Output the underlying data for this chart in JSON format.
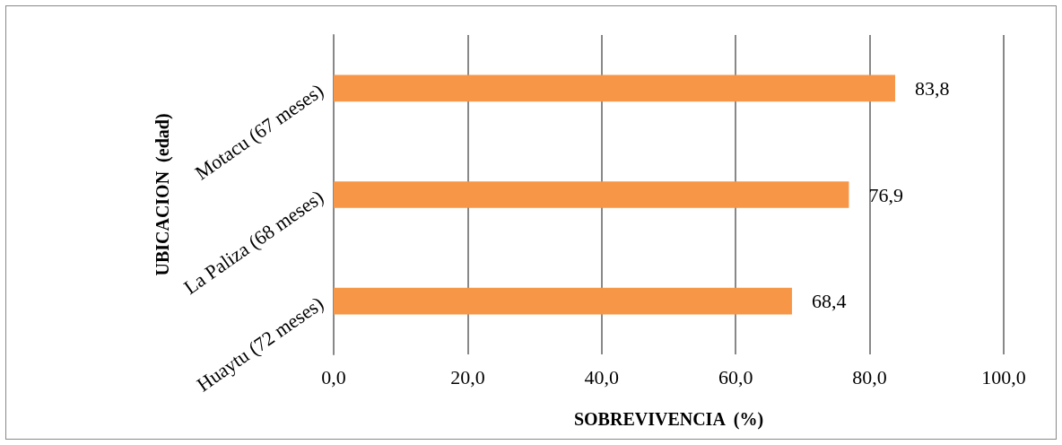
{
  "chart_data": {
    "type": "bar",
    "orientation": "horizontal",
    "xlabel": "SOBREVIVENCIA  (%)",
    "ylabel": "UBICACION  (edad)",
    "categories": [
      "Motacu (67 meses)",
      "La Paliza (68 meses)",
      "Huaytu (72 meses)"
    ],
    "values": [
      83.8,
      76.9,
      68.4
    ],
    "value_labels": [
      "83,8",
      "76,9",
      "68,4"
    ],
    "color": "#f79646",
    "xlim": [
      0,
      100
    ],
    "xticks": [
      {
        "value": 0,
        "label": "0,0"
      },
      {
        "value": 20,
        "label": "20,0"
      },
      {
        "value": 40,
        "label": "40,0"
      },
      {
        "value": 60,
        "label": "60,0"
      },
      {
        "value": 80,
        "label": "80,0"
      },
      {
        "value": 100,
        "label": "100,0"
      }
    ],
    "grid": "x"
  }
}
